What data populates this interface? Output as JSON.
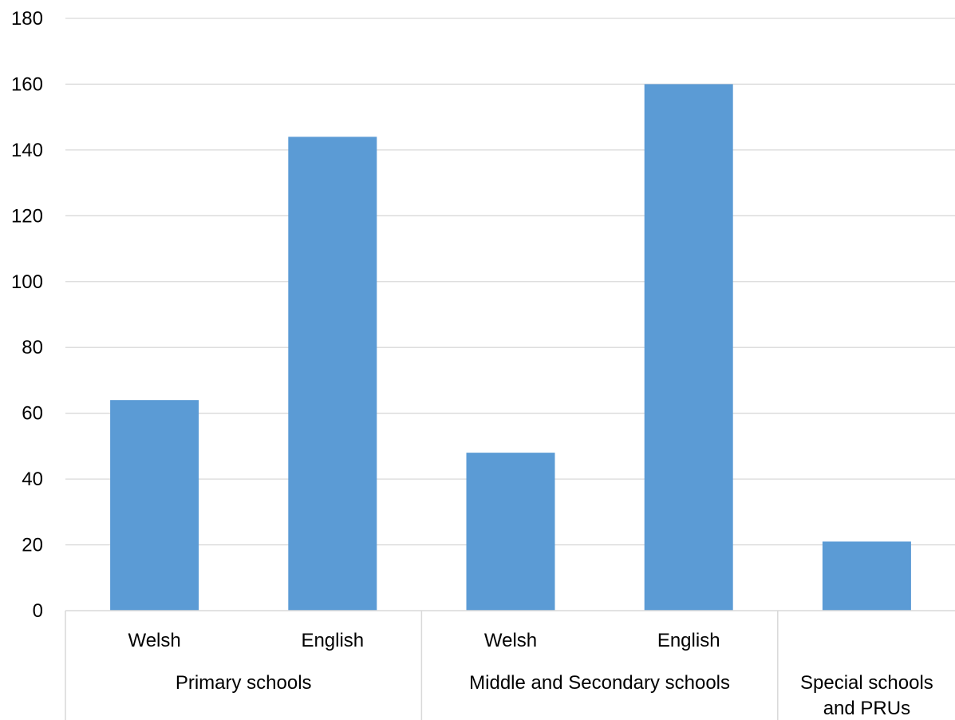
{
  "chart_data": {
    "type": "bar",
    "title": "",
    "xlabel": "",
    "ylabel": "",
    "ylim": [
      0,
      180
    ],
    "yticks": [
      0,
      20,
      40,
      60,
      80,
      100,
      120,
      140,
      160,
      180
    ],
    "grid": true,
    "legend": "none",
    "colors": {
      "bar": "#5b9bd5",
      "grid": "#d9d9d9",
      "axis": "#d9d9d9"
    },
    "groups": [
      {
        "name": "Primary schools",
        "name_lines": [
          "Primary schools"
        ],
        "categories": [
          "Welsh",
          "English"
        ],
        "values": [
          64,
          144
        ]
      },
      {
        "name": "Middle and Secondary schools",
        "name_lines": [
          "Middle and Secondary schools"
        ],
        "categories": [
          "Welsh",
          "English"
        ],
        "values": [
          48,
          160
        ]
      },
      {
        "name": "Special schools and PRUs",
        "name_lines": [
          "Special schools",
          "and PRUs"
        ],
        "categories": [
          ""
        ],
        "values": [
          21
        ]
      }
    ]
  }
}
